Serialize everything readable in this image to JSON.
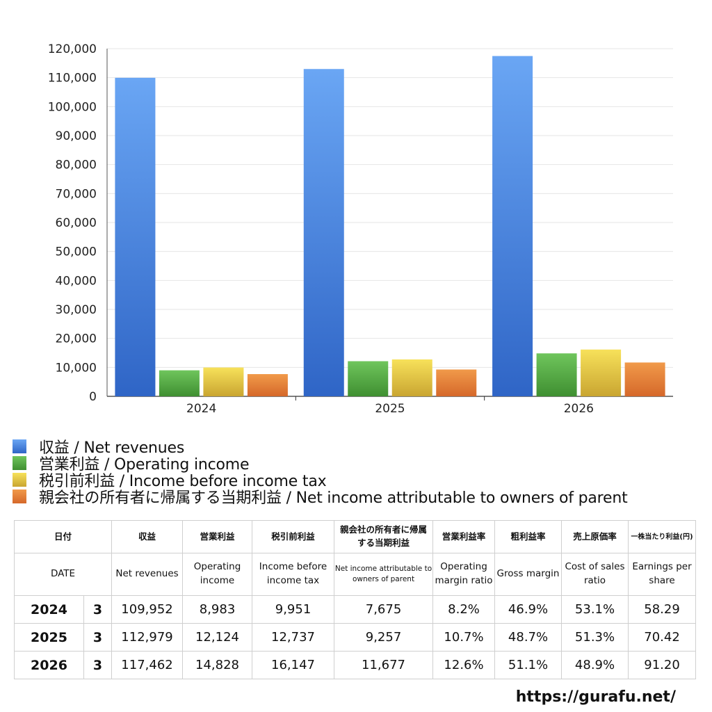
{
  "chart_data": {
    "type": "bar",
    "categories": [
      "2024",
      "2025",
      "2026"
    ],
    "series": [
      {
        "name": "収益 / Net revenues",
        "values": [
          109952,
          112979,
          117462
        ],
        "color": "#3f7ee0"
      },
      {
        "name": "営業利益 / Operating income",
        "values": [
          8983,
          12124,
          14828
        ],
        "color": "#4fa43e"
      },
      {
        "name": "税引前利益 / Income before income tax",
        "values": [
          9951,
          12737,
          16147
        ],
        "color": "#e7c93b"
      },
      {
        "name": "親会社の所有者に帰属する当期利益 / Net income attributable to owners of parent",
        "values": [
          7675,
          9257,
          11677
        ],
        "color": "#e47c2e"
      }
    ],
    "ylim": [
      0,
      120000
    ],
    "yticks": [
      "0",
      "10,000",
      "20,000",
      "30,000",
      "40,000",
      "50,000",
      "60,000",
      "70,000",
      "80,000",
      "90,000",
      "100,000",
      "110,000",
      "120,000"
    ],
    "grid": true,
    "legend_position": "bottom"
  },
  "table": {
    "header_jp": [
      "日付",
      "収益",
      "営業利益",
      "税引前利益",
      "親会社の所有者に帰属する当期利益",
      "営業利益率",
      "粗利益率",
      "売上原価率",
      "一株当たり利益(円)"
    ],
    "header_en": [
      "DATE",
      "Net revenues",
      "Operating income",
      "Income before income tax",
      "Net income attributable to owners of parent",
      "Operating margin ratio",
      "Gross margin",
      "Cost of sales ratio",
      "Earnings per share"
    ],
    "rows": [
      {
        "year": "2024",
        "month": "3",
        "cells": [
          "109,952",
          "8,983",
          "9,951",
          "7,675",
          "8.2%",
          "46.9%",
          "53.1%",
          "58.29"
        ]
      },
      {
        "year": "2025",
        "month": "3",
        "cells": [
          "112,979",
          "12,124",
          "12,737",
          "9,257",
          "10.7%",
          "48.7%",
          "51.3%",
          "70.42"
        ]
      },
      {
        "year": "2026",
        "month": "3",
        "cells": [
          "117,462",
          "14,828",
          "16,147",
          "11,677",
          "12.6%",
          "51.1%",
          "48.9%",
          "91.20"
        ]
      }
    ]
  },
  "footer": {
    "url": "https://gurafu.net/"
  }
}
